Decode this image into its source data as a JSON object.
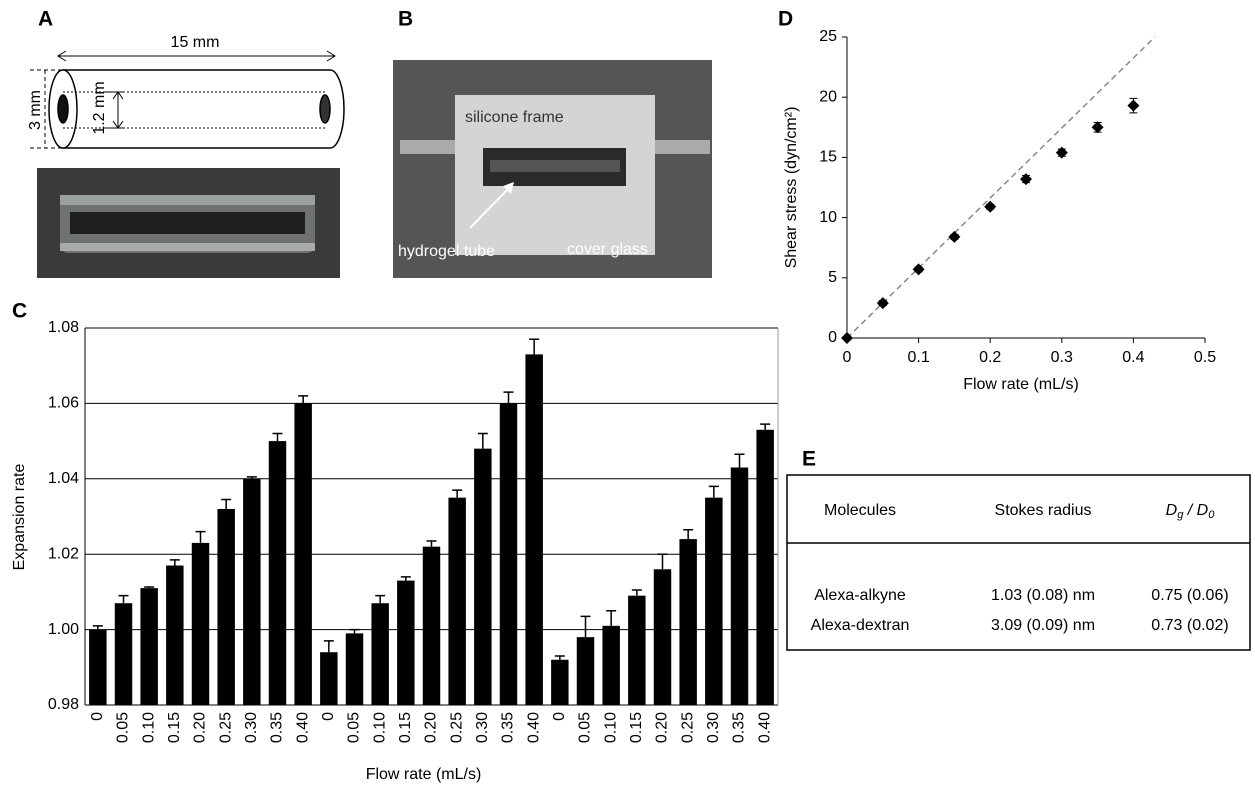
{
  "panel_labels": [
    "A",
    "B",
    "C",
    "D",
    "E"
  ],
  "diagram_a": {
    "length": "15 mm",
    "outer_diameter": "3 mm",
    "inner_diameter": "1.2 mm"
  },
  "photo_b": {
    "frame": "silicone frame",
    "tube": "hydrogel tube",
    "glass": "cover glass"
  },
  "chart_data": [
    {
      "type": "bar",
      "xlabel": "Flow rate (mL/s)",
      "ylabel": "Expansion rate",
      "color": "#000000",
      "grid": true,
      "categories": [
        "0",
        "0.05",
        "0.10",
        "0.15",
        "0.20",
        "0.25",
        "0.30",
        "0.35",
        "0.40",
        "0",
        "0.05",
        "0.10",
        "0.15",
        "0.20",
        "0.25",
        "0.30",
        "0.35",
        "0.40",
        "0",
        "0.05",
        "0.10",
        "0.15",
        "0.20",
        "0.25",
        "0.30",
        "0.35",
        "0.40"
      ],
      "values": [
        1.0,
        1.007,
        1.011,
        1.017,
        1.023,
        1.032,
        1.04,
        1.05,
        1.06,
        0.994,
        0.999,
        1.007,
        1.013,
        1.022,
        1.035,
        1.048,
        1.06,
        1.073,
        0.992,
        0.998,
        1.001,
        1.009,
        1.016,
        1.024,
        1.035,
        1.043,
        1.053
      ],
      "errors": [
        0.001,
        0.002,
        0.0003,
        0.0015,
        0.003,
        0.0025,
        0.0005,
        0.002,
        0.002,
        0.003,
        0.001,
        0.002,
        0.001,
        0.0015,
        0.002,
        0.004,
        0.003,
        0.004,
        0.001,
        0.0055,
        0.004,
        0.0015,
        0.004,
        0.0025,
        0.003,
        0.0035,
        0.0015
      ],
      "ylim": [
        0.98,
        1.08
      ],
      "yticks": [
        0.98,
        {
          "value": 1.0,
          "label": "1.00"
        },
        1.02,
        1.04,
        1.06,
        1.08
      ]
    },
    {
      "type": "scatter",
      "xlabel": "Flow rate (mL/s)",
      "ylabel": "Shear stress (dyn/cm²)",
      "color": "#000000",
      "x": [
        0,
        0.05,
        0.1,
        0.15,
        0.2,
        0.25,
        0.3,
        0.35,
        0.4
      ],
      "y": [
        0,
        2.9,
        5.7,
        8.4,
        10.9,
        13.2,
        15.4,
        17.5,
        19.3
      ],
      "errors": [
        0,
        0.2,
        0.2,
        0.2,
        0.2,
        0.3,
        0.3,
        0.4,
        0.6
      ],
      "reference_line": {
        "x": [
          0,
          0.43
        ],
        "y": [
          0,
          25
        ]
      },
      "xlim": [
        0,
        0.5
      ],
      "xticks": [
        0,
        0.1,
        0.2,
        0.3,
        0.4,
        0.5
      ],
      "ylim": [
        0,
        25
      ],
      "yticks": [
        0,
        5,
        10,
        15,
        20,
        25
      ]
    }
  ],
  "table": {
    "header": [
      "Molecules",
      "Stokes radius"
    ],
    "ratio_header": {
      "numerator": "D",
      "numerator_sub": "g",
      "slash": " / ",
      "denominator": "D",
      "denominator_sub": "0"
    },
    "rows": [
      [
        "Alexa-alkyne",
        "1.03 (0.08) nm",
        "0.75 (0.06)"
      ],
      [
        "Alexa-dextran",
        "3.09 (0.09) nm",
        "0.73 (0.02)"
      ]
    ]
  }
}
